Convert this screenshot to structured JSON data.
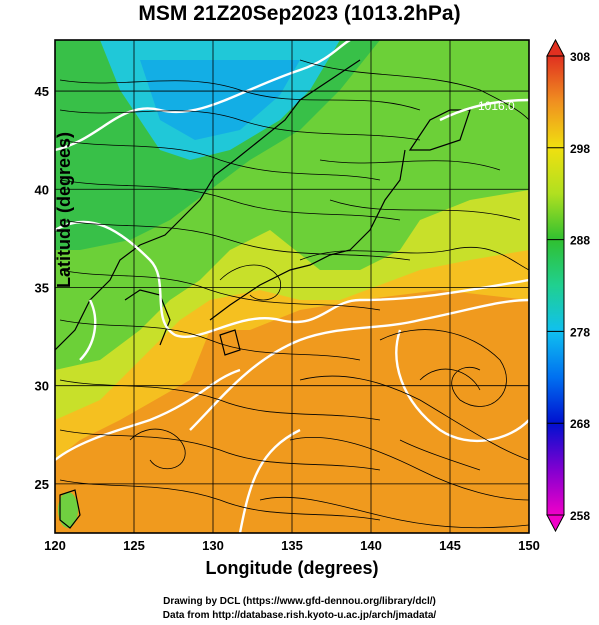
{
  "title": "MSM 21Z20Sep2023 (1013.2hPa)",
  "x_axis": {
    "label": "Longitude (degrees)",
    "range": [
      120,
      150
    ],
    "ticks": [
      120,
      125,
      130,
      135,
      140,
      145,
      150
    ]
  },
  "y_axis": {
    "label": "Latitude  (degrees)",
    "range": [
      22.5,
      47.6
    ],
    "ticks": [
      25,
      30,
      35,
      40,
      45
    ]
  },
  "colorbar": {
    "range": [
      258,
      308
    ],
    "ticks": [
      258,
      268,
      278,
      288,
      298,
      308
    ]
  },
  "contour_label": "1016.0",
  "credits": [
    "Drawing by DCL (https://www.gfd-dennou.org/library/dcl/)",
    "Data from http://database.rish.kyoto-u.ac.jp/arch/jmadata/"
  ]
}
